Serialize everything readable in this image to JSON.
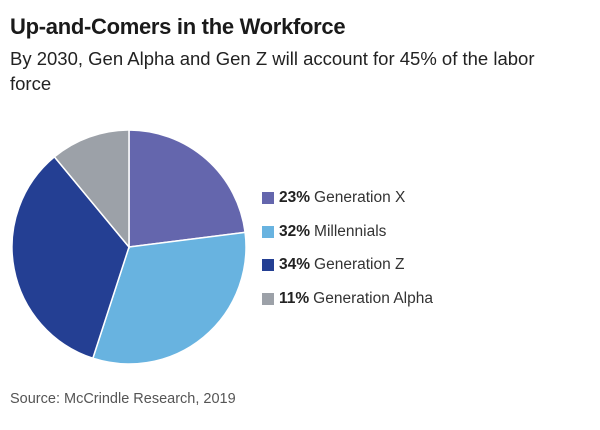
{
  "title": "Up-and-Comers in the Workforce",
  "subtitle": "By 2030, Gen Alpha and Gen Z will account for 45% of the labor force",
  "source": "Source: McCrindle Research, 2019",
  "chart_data": {
    "type": "pie",
    "title": "Up-and-Comers in the Workforce",
    "subtitle": "By 2030, Gen Alpha and Gen Z will account for 45% of the labor force",
    "legend_placement": "right",
    "slices": [
      {
        "label": "Generation X",
        "pct_label": "23%",
        "value": 23,
        "color": "#6466ad"
      },
      {
        "label": "Millennials",
        "pct_label": "32%",
        "value": 32,
        "color": "#68b3e0"
      },
      {
        "label": "Generation Z",
        "pct_label": "34%",
        "value": 34,
        "color": "#243f93"
      },
      {
        "label": "Generation Alpha",
        "pct_label": "11%",
        "value": 11,
        "color": "#9ca1a8"
      }
    ]
  }
}
